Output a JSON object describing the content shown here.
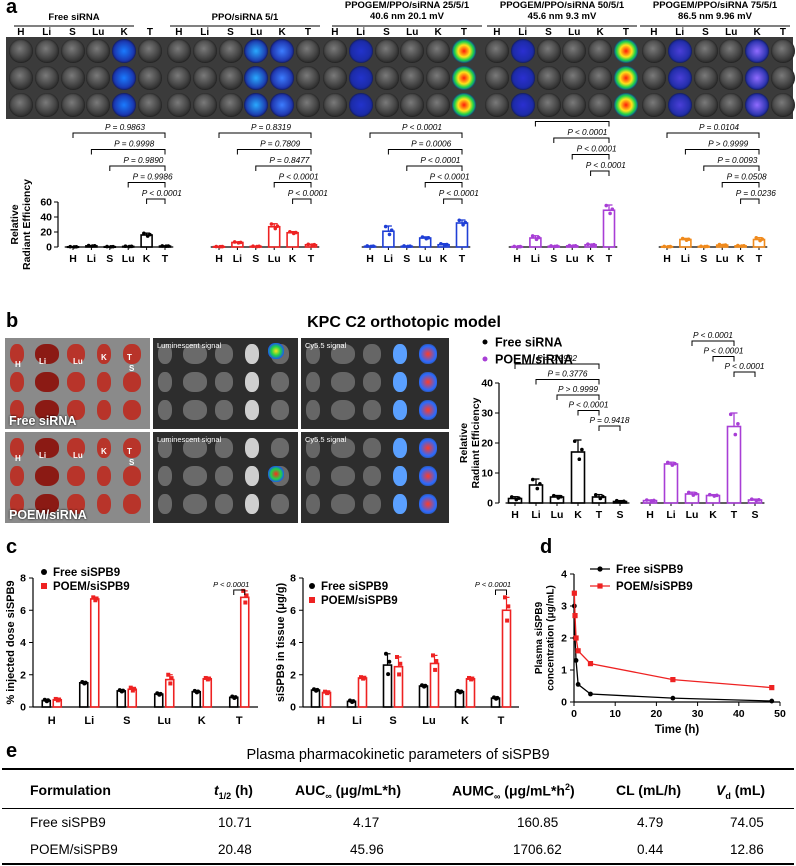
{
  "panel_labels": {
    "a": "a",
    "b": "b",
    "c": "c",
    "d": "d",
    "e": "e"
  },
  "panel_a": {
    "lane_letters": [
      "H",
      "Li",
      "S",
      "Lu",
      "K",
      "T"
    ],
    "group_titles": [
      {
        "line1": "Free siRNA",
        "line2": ""
      },
      {
        "line1": "PPO/siRNA 5/1",
        "line2": ""
      },
      {
        "line1": "PPOGEM/PPO/siRNA 25/5/1",
        "line2": "40.6 nm 20.1 mV"
      },
      {
        "line1": "PPOGEM/PPO/siRNA 50/5/1",
        "line2": "45.6 nm 9.3 mV"
      },
      {
        "line1": "PPOGEM/PPO/siRNA 75/5/1",
        "line2": "86.5 nm 9.96 mV"
      }
    ]
  },
  "panel_b": {
    "title": "KPC C2 orthotopic model",
    "photo_labels": {
      "free": "Free siRNA",
      "poem": "POEM/siRNA",
      "lum": "Luminescent signal",
      "cy": "Cy5.5 signal",
      "organs_top": [
        "H",
        "Li",
        "Lu",
        "K",
        "T",
        "S"
      ],
      "organs_bottom": [
        "H",
        "Li",
        "Lu",
        "K",
        "T",
        "S"
      ]
    }
  },
  "table_e": {
    "title": "Plasma pharmacokinetic parameters of siSPB9",
    "headers": [
      "Formulation",
      "t1/2 (h)",
      "AUC∞ (μg/mL*h)",
      "AUMC∞ (μg/mL*h²)",
      "CL (mL/h)",
      "Vd (mL)"
    ],
    "header_parts": {
      "t": "t",
      "t_sub": "1/2",
      "t_unit": " (h)",
      "auc": "AUC",
      "auc_sub": "∞",
      "auc_unit": " (μg/mL*h)",
      "aumc": "AUMC",
      "aumc_sub": "∞",
      "aumc_unit": " (μg/mL*h",
      "aumc_sup": "2",
      "aumc_close": ")",
      "v": "V",
      "v_sub": "d",
      "v_unit": " (mL)"
    },
    "rows": [
      [
        "Free siSPB9",
        "10.71",
        "4.17",
        "160.85",
        "4.79",
        "74.05"
      ],
      [
        "POEM/siSPB9",
        "20.48",
        "45.96",
        "1706.62",
        "0.44",
        "12.86"
      ]
    ]
  },
  "chart_data": [
    {
      "id": "a",
      "type": "bar",
      "ylabel": "Relative Radiant Efficiency",
      "ylim": [
        0,
        60
      ],
      "yticks": [
        0,
        20,
        40,
        60
      ],
      "categories": [
        "H",
        "Li",
        "S",
        "Lu",
        "K",
        "T"
      ],
      "groups": [
        {
          "name": "Free siRNA",
          "color": "#000000",
          "values": [
            0.3,
            1.5,
            0.4,
            0.8,
            16,
            1.2
          ],
          "err": [
            0.2,
            0.4,
            0.2,
            0.3,
            2.5,
            0.3
          ],
          "comparisons": [
            {
              "from": "H",
              "to": "T",
              "p": "P = 0.9863"
            },
            {
              "from": "Li",
              "to": "T",
              "p": "P = 0.9998"
            },
            {
              "from": "S",
              "to": "T",
              "p": "P = 0.9890"
            },
            {
              "from": "Lu",
              "to": "T",
              "p": "P = 0.9986"
            },
            {
              "from": "K",
              "to": "T",
              "p": "P < 0.0001"
            }
          ]
        },
        {
          "name": "PPO/siRNA 5/1",
          "color": "#ee2222",
          "values": [
            0.5,
            6,
            0.8,
            27,
            19,
            3
          ],
          "err": [
            0.2,
            0.8,
            0.3,
            4,
            1.5,
            0.6
          ],
          "comparisons": [
            {
              "from": "H",
              "to": "T",
              "p": "P = 0.8319"
            },
            {
              "from": "Li",
              "to": "T",
              "p": "P = 0.7809"
            },
            {
              "from": "S",
              "to": "T",
              "p": "P = 0.8477"
            },
            {
              "from": "Lu",
              "to": "T",
              "p": "P < 0.0001"
            },
            {
              "from": "K",
              "to": "T",
              "p": "P < 0.0001"
            }
          ]
        },
        {
          "name": "PPOGEM/PPO/siRNA 25/5/1",
          "color": "#1f3fd6",
          "values": [
            1,
            21,
            1,
            12,
            3,
            32
          ],
          "err": [
            0.4,
            7,
            0.4,
            1.5,
            1.5,
            4
          ],
          "comparisons": [
            {
              "from": "H",
              "to": "T",
              "p": "P < 0.0001"
            },
            {
              "from": "Li",
              "to": "T",
              "p": "P = 0.0006"
            },
            {
              "from": "S",
              "to": "T",
              "p": "P < 0.0001"
            },
            {
              "from": "Lu",
              "to": "T",
              "p": "P < 0.0001"
            },
            {
              "from": "K",
              "to": "T",
              "p": "P < 0.0001"
            }
          ]
        },
        {
          "name": "PPOGEM/PPO/siRNA 50/5/1",
          "color": "#a83ed6",
          "values": [
            0.5,
            12,
            1,
            1.5,
            3,
            49
          ],
          "err": [
            0.3,
            3,
            0.4,
            0.5,
            0.8,
            7
          ],
          "comparisons": [
            {
              "from": "H",
              "to": "T",
              "p": "P < 0.0001"
            },
            {
              "from": "Li",
              "to": "T",
              "p": "P < 0.0001"
            },
            {
              "from": "S",
              "to": "T",
              "p": "P < 0.0001"
            },
            {
              "from": "Lu",
              "to": "T",
              "p": "P < 0.0001"
            },
            {
              "from": "K",
              "to": "T",
              "p": "P < 0.0001"
            }
          ]
        },
        {
          "name": "PPOGEM/PPO/siRNA 75/5/1",
          "color": "#f08a1c",
          "values": [
            0.5,
            10,
            0.7,
            2.5,
            1.5,
            10
          ],
          "err": [
            0.3,
            1.5,
            0.3,
            0.8,
            0.5,
            2.5
          ],
          "comparisons": [
            {
              "from": "H",
              "to": "T",
              "p": "P = 0.0104"
            },
            {
              "from": "Li",
              "to": "T",
              "p": "P > 0.9999"
            },
            {
              "from": "S",
              "to": "T",
              "p": "P = 0.0093"
            },
            {
              "from": "Lu",
              "to": "T",
              "p": "P = 0.0508"
            },
            {
              "from": "K",
              "to": "T",
              "p": "P = 0.0236"
            }
          ]
        }
      ]
    },
    {
      "id": "b",
      "type": "bar",
      "ylabel": "Relative Radiant Efficiency",
      "ylim": [
        0,
        40
      ],
      "yticks": [
        0,
        10,
        20,
        30,
        40
      ],
      "categories": [
        "H",
        "Li",
        "Lu",
        "K",
        "T",
        "S"
      ],
      "legend": [
        "Free siRNA",
        "POEM/siRNA"
      ],
      "groups": [
        {
          "name": "Free siRNA",
          "color": "#000000",
          "values": [
            1.5,
            6,
            2,
            17,
            2,
            0.5
          ],
          "err": [
            0.6,
            2,
            0.5,
            4,
            0.8,
            0.3
          ],
          "comparisons": [
            {
              "from": "H",
              "to": "T",
              "p": "P = 0.9992"
            },
            {
              "from": "Li",
              "to": "T",
              "p": "P = 0.3776"
            },
            {
              "from": "Lu",
              "to": "T",
              "p": "P > 0.9999"
            },
            {
              "from": "K",
              "to": "T",
              "p": "P < 0.0001"
            },
            {
              "from": "T",
              "to": "S",
              "p": "P = 0.9418"
            }
          ]
        },
        {
          "name": "POEM/siRNA",
          "color": "#a83ed6",
          "values": [
            0.8,
            13,
            3,
            2.5,
            25.5,
            1
          ],
          "err": [
            0.2,
            0.6,
            0.6,
            0.3,
            4.5,
            0.3
          ],
          "comparisons": [
            {
              "from": "H",
              "to": "T",
              "p": "P < 0.0001"
            },
            {
              "from": "Li",
              "to": "T",
              "p": "P = 0.0001"
            },
            {
              "from": "Lu",
              "to": "T",
              "p": "P < 0.0001"
            },
            {
              "from": "K",
              "to": "T",
              "p": "P < 0.0001"
            },
            {
              "from": "T",
              "to": "S",
              "p": "P < 0.0001"
            }
          ]
        }
      ]
    },
    {
      "id": "c1",
      "type": "bar",
      "ylabel": "% injected dose siSPB9",
      "ylim": [
        0,
        8
      ],
      "yticks": [
        0,
        2,
        4,
        6,
        8
      ],
      "categories": [
        "H",
        "Li",
        "S",
        "Lu",
        "K",
        "T"
      ],
      "series": [
        {
          "name": "Free siSPB9",
          "color": "#000000",
          "values": [
            0.4,
            1.5,
            1.0,
            0.8,
            0.95,
            0.6
          ],
          "err": [
            0.05,
            0.05,
            0.05,
            0.05,
            0.05,
            0.05
          ]
        },
        {
          "name": "POEM/siSPB9",
          "color": "#ee2222",
          "values": [
            0.45,
            6.7,
            1.1,
            1.7,
            1.75,
            6.8
          ],
          "err": [
            0.05,
            0.1,
            0.1,
            0.3,
            0.05,
            0.4
          ]
        }
      ],
      "annotation": {
        "from": "T",
        "p": "P < 0.0001"
      }
    },
    {
      "id": "c2",
      "type": "bar",
      "ylabel": "siSPB9 in tissue (μg/g)",
      "ylim": [
        0,
        8
      ],
      "yticks": [
        0,
        2,
        4,
        6,
        8
      ],
      "categories": [
        "H",
        "Li",
        "S",
        "Lu",
        "K",
        "T"
      ],
      "series": [
        {
          "name": "Free siSPB9",
          "color": "#000000",
          "values": [
            1.05,
            0.35,
            2.6,
            1.3,
            0.95,
            0.55
          ],
          "err": [
            0.05,
            0.05,
            0.7,
            0.05,
            0.05,
            0.05
          ]
        },
        {
          "name": "POEM/siSPB9",
          "color": "#ee2222",
          "values": [
            0.9,
            1.8,
            2.5,
            2.7,
            1.75,
            6.0
          ],
          "err": [
            0.05,
            0.05,
            0.6,
            0.5,
            0.05,
            0.8
          ]
        }
      ],
      "annotation": {
        "from": "T",
        "p": "P < 0.0001"
      }
    },
    {
      "id": "d",
      "type": "line",
      "ylabel": "Plasma siSPB9 concentration (μg/mL)",
      "xlabel": "Time (h)",
      "xlim": [
        0,
        50
      ],
      "ylim": [
        0,
        4
      ],
      "xticks": [
        0,
        10,
        20,
        30,
        40,
        50
      ],
      "yticks": [
        0,
        1,
        2,
        3,
        4
      ],
      "series": [
        {
          "name": "Free siSPB9",
          "color": "#000000",
          "x": [
            0.083,
            0.25,
            0.5,
            1,
            4,
            24,
            48
          ],
          "y": [
            3.0,
            2.0,
            1.3,
            0.55,
            0.25,
            0.12,
            0.03
          ]
        },
        {
          "name": "POEM/siSPB9",
          "color": "#ee2222",
          "x": [
            0.083,
            0.25,
            0.5,
            1,
            4,
            24,
            48
          ],
          "y": [
            3.4,
            2.7,
            2.0,
            1.6,
            1.2,
            0.7,
            0.45
          ]
        }
      ]
    }
  ]
}
